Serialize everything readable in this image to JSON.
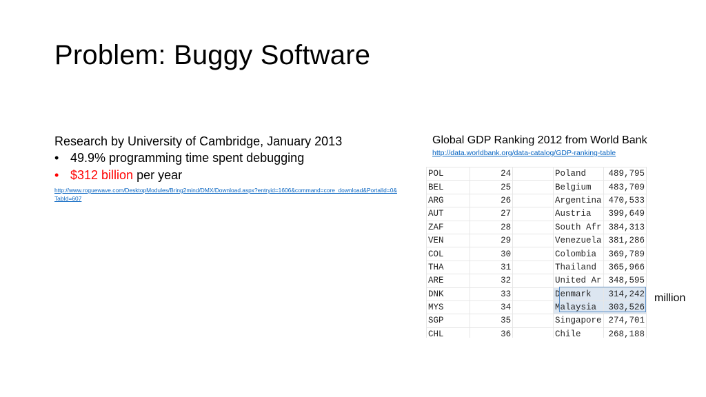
{
  "slide": {
    "title": "Problem: Buggy Software"
  },
  "left": {
    "heading": "Research by University of Cambridge, January 2013",
    "bullets": [
      {
        "marker": "•",
        "text": "49.9% programming time spent debugging"
      },
      {
        "marker": "•",
        "highlight": "$312 billion",
        "rest": " per year"
      }
    ],
    "link": "http://www.roguewave.com/DesktopModules/Bring2mind/DMX/Download.aspx?entryid=1606&command=core_download&PortalId=0&TabId=607"
  },
  "right": {
    "heading": "Global GDP Ranking 2012 from World Bank",
    "link": "http://data.worldbank.org/data-catalog/GDP-ranking-table",
    "rows": [
      {
        "code": "POL",
        "rank": "24",
        "country": "Poland",
        "gdp": "489,795"
      },
      {
        "code": "BEL",
        "rank": "25",
        "country": "Belgium",
        "gdp": "483,709"
      },
      {
        "code": "ARG",
        "rank": "26",
        "country": "Argentina",
        "gdp": "470,533"
      },
      {
        "code": "AUT",
        "rank": "27",
        "country": "Austria",
        "gdp": "399,649"
      },
      {
        "code": "ZAF",
        "rank": "28",
        "country": "South Afr",
        "gdp": "384,313"
      },
      {
        "code": "VEN",
        "rank": "29",
        "country": "Venezuela",
        "gdp": "381,286"
      },
      {
        "code": "COL",
        "rank": "30",
        "country": "Colombia",
        "gdp": "369,789"
      },
      {
        "code": "THA",
        "rank": "31",
        "country": "Thailand",
        "gdp": "365,966"
      },
      {
        "code": "ARE",
        "rank": "32",
        "country": "United Ar",
        "gdp": "348,595"
      },
      {
        "code": "DNK",
        "rank": "33",
        "country": "Denmark",
        "gdp": "314,242"
      },
      {
        "code": "MYS",
        "rank": "34",
        "country": "Malaysia",
        "gdp": "303,526"
      },
      {
        "code": "SGP",
        "rank": "35",
        "country": "Singapore",
        "gdp": "274,701"
      },
      {
        "code": "CHL",
        "rank": "36",
        "country": "Chile",
        "gdp": "268,188"
      }
    ],
    "unit_label": "million"
  }
}
